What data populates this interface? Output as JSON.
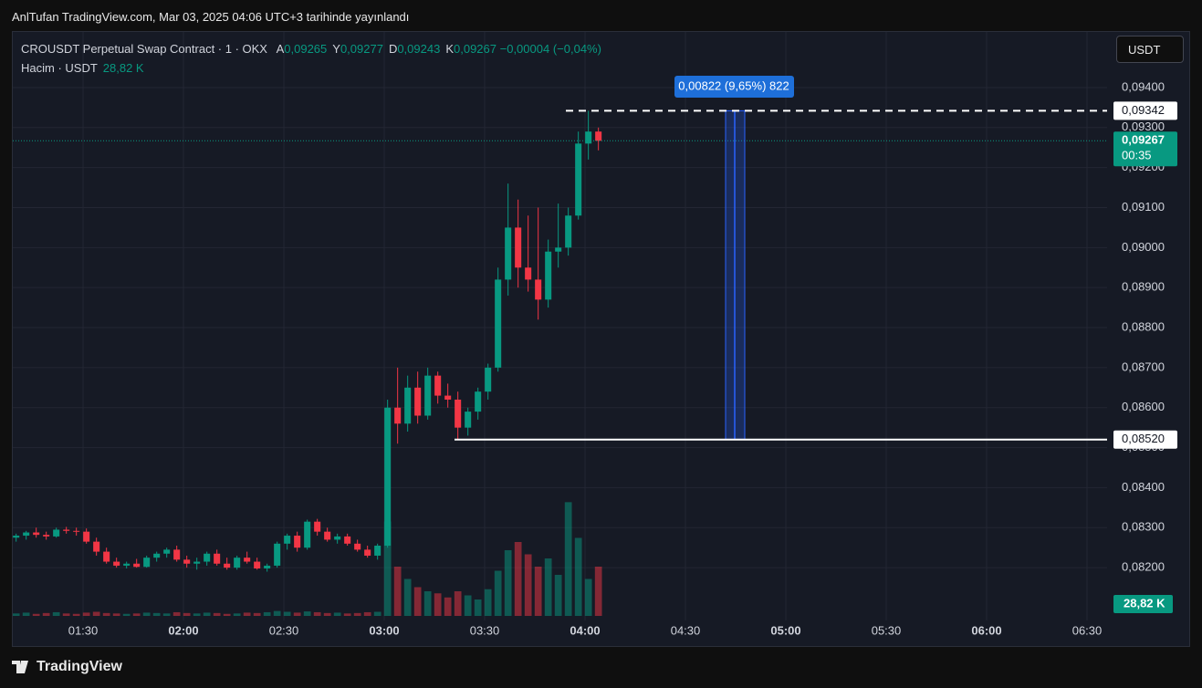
{
  "header": {
    "published": "AnlTufan TradingView.com, Mar 03, 2025 04:06 UTC+3 tarihinde yayınlandı",
    "currency": "USDT"
  },
  "footer": {
    "brand": "TradingView"
  },
  "chart_data": {
    "type": "candlestick",
    "legend": {
      "title": "CROUSDT Perpetual Swap Contract · 1 · OKX",
      "items": [
        {
          "key": "A",
          "value": "0,09265"
        },
        {
          "key": "Y",
          "value": "0,09277"
        },
        {
          "key": "D",
          "value": "0,09243"
        },
        {
          "key": "K",
          "value": "0,09267"
        }
      ],
      "change": "−0,00004 (−0,04%)"
    },
    "volume_title": "Hacim · USDT",
    "volume_last": {
      "value": 28.82,
      "label": "28,82 K"
    },
    "up_color": "#089981",
    "down_color": "#f23645",
    "grid": true,
    "x": [
      "01:10",
      "01:13",
      "01:16",
      "01:19",
      "01:22",
      "01:25",
      "01:28",
      "01:31",
      "01:34",
      "01:37",
      "01:40",
      "01:43",
      "01:46",
      "01:49",
      "01:52",
      "01:55",
      "01:58",
      "02:01",
      "02:04",
      "02:07",
      "02:10",
      "02:13",
      "02:16",
      "02:19",
      "02:22",
      "02:25",
      "02:28",
      "02:31",
      "02:34",
      "02:37",
      "02:40",
      "02:43",
      "02:46",
      "02:49",
      "02:52",
      "02:55",
      "02:58",
      "03:01",
      "03:04",
      "03:07",
      "03:10",
      "03:13",
      "03:16",
      "03:19",
      "03:22",
      "03:25",
      "03:28",
      "03:31",
      "03:34",
      "03:37",
      "03:40",
      "03:43",
      "03:46",
      "03:49",
      "03:52",
      "03:55",
      "03:58",
      "04:01",
      "04:04"
    ],
    "open": [
      0.08275,
      0.0828,
      0.08288,
      0.08282,
      0.08278,
      0.08295,
      0.08292,
      0.0829,
      0.08265,
      0.0824,
      0.08215,
      0.08205,
      0.0821,
      0.08202,
      0.08225,
      0.08235,
      0.08245,
      0.0822,
      0.0821,
      0.08215,
      0.08235,
      0.0821,
      0.082,
      0.08225,
      0.08215,
      0.08198,
      0.08205,
      0.0826,
      0.0828,
      0.0825,
      0.08315,
      0.0829,
      0.0827,
      0.08278,
      0.0826,
      0.08245,
      0.0823,
      0.08255,
      0.086,
      0.0856,
      0.0865,
      0.0858,
      0.0868,
      0.0863,
      0.0862,
      0.0855,
      0.0859,
      0.0864,
      0.087,
      0.0892,
      0.0905,
      0.0895,
      0.0892,
      0.0887,
      0.0899,
      0.09,
      0.0908,
      0.0926,
      0.0929
    ],
    "high": [
      0.08285,
      0.08292,
      0.083,
      0.0829,
      0.083,
      0.08302,
      0.083,
      0.08298,
      0.08275,
      0.0825,
      0.08225,
      0.08215,
      0.08222,
      0.0823,
      0.0824,
      0.0825,
      0.08255,
      0.0823,
      0.08225,
      0.0824,
      0.08245,
      0.08225,
      0.0823,
      0.0824,
      0.08225,
      0.0821,
      0.08265,
      0.08285,
      0.0829,
      0.0832,
      0.08322,
      0.083,
      0.08285,
      0.08285,
      0.0827,
      0.08255,
      0.0826,
      0.0862,
      0.087,
      0.0868,
      0.0869,
      0.087,
      0.0869,
      0.0866,
      0.0864,
      0.086,
      0.0865,
      0.0871,
      0.0895,
      0.0916,
      0.0912,
      0.0908,
      0.091,
      0.0902,
      0.0911,
      0.091,
      0.0929,
      0.09342,
      0.093
    ],
    "low": [
      0.08265,
      0.0827,
      0.08275,
      0.0827,
      0.08275,
      0.08285,
      0.0828,
      0.0826,
      0.0823,
      0.0821,
      0.082,
      0.08198,
      0.082,
      0.082,
      0.08215,
      0.08225,
      0.08215,
      0.082,
      0.08195,
      0.08205,
      0.08205,
      0.08195,
      0.08195,
      0.0821,
      0.08195,
      0.0819,
      0.082,
      0.08245,
      0.0824,
      0.08245,
      0.0828,
      0.08265,
      0.0826,
      0.08255,
      0.0824,
      0.08225,
      0.0822,
      0.0825,
      0.0851,
      0.0854,
      0.0856,
      0.0857,
      0.0861,
      0.086,
      0.0852,
      0.0853,
      0.0857,
      0.0862,
      0.0869,
      0.0888,
      0.089,
      0.0889,
      0.0882,
      0.0885,
      0.0895,
      0.0898,
      0.0907,
      0.0922,
      0.09243
    ],
    "close": [
      0.0828,
      0.08288,
      0.08282,
      0.08278,
      0.08295,
      0.08292,
      0.0829,
      0.08265,
      0.0824,
      0.08215,
      0.08205,
      0.0821,
      0.08202,
      0.08225,
      0.08235,
      0.08245,
      0.0822,
      0.0821,
      0.08215,
      0.08235,
      0.0821,
      0.082,
      0.08225,
      0.08215,
      0.08198,
      0.08205,
      0.0826,
      0.0828,
      0.0825,
      0.08315,
      0.0829,
      0.0827,
      0.08278,
      0.0826,
      0.08245,
      0.0823,
      0.08255,
      0.086,
      0.0856,
      0.0865,
      0.0858,
      0.0868,
      0.0863,
      0.0862,
      0.0855,
      0.0859,
      0.0864,
      0.087,
      0.0892,
      0.0905,
      0.0895,
      0.0892,
      0.0887,
      0.0899,
      0.09,
      0.0908,
      0.0926,
      0.0929,
      0.09267
    ],
    "volume": [
      6,
      8,
      5,
      7,
      9,
      6,
      5,
      8,
      10,
      7,
      6,
      5,
      6,
      8,
      7,
      6,
      9,
      7,
      6,
      8,
      7,
      5,
      6,
      8,
      7,
      9,
      12,
      10,
      8,
      11,
      9,
      7,
      8,
      6,
      7,
      9,
      10,
      230,
      120,
      90,
      70,
      60,
      55,
      45,
      60,
      50,
      40,
      65,
      110,
      160,
      180,
      150,
      120,
      140,
      100,
      277,
      190,
      90,
      120
    ],
    "volume_ylim": [
      0,
      400
    ],
    "xlim": [
      "01:09",
      "06:36"
    ],
    "xticks": [
      "01:30",
      "02:00",
      "02:30",
      "03:00",
      "03:30",
      "04:00",
      "04:30",
      "05:00",
      "05:30",
      "06:00",
      "06:30"
    ],
    "ylim": [
      0.08068,
      0.09539
    ],
    "yticks": [
      {
        "value": 0.082,
        "label": "0,08200"
      },
      {
        "value": 0.083,
        "label": "0,08300"
      },
      {
        "value": 0.084,
        "label": "0,08400"
      },
      {
        "value": 0.085,
        "label": "0,08500"
      },
      {
        "value": 0.086,
        "label": "0,08600"
      },
      {
        "value": 0.087,
        "label": "0,08700"
      },
      {
        "value": 0.088,
        "label": "0,08800"
      },
      {
        "value": 0.089,
        "label": "0,08900"
      },
      {
        "value": 0.09,
        "label": "0,09000"
      },
      {
        "value": 0.091,
        "label": "0,09100"
      },
      {
        "value": 0.092,
        "label": "0,09200"
      },
      {
        "value": 0.093,
        "label": "0,09300"
      },
      {
        "value": 0.094,
        "label": "0,09400"
      }
    ],
    "levels": [
      {
        "value": 0.0852,
        "label": "0,08520",
        "style": "solid"
      },
      {
        "value": 0.09342,
        "label": "0,09342",
        "style": "dashed"
      }
    ],
    "measure": {
      "label": "0,00822 (9,65%) 822"
    },
    "last_price": {
      "value": 0.09267,
      "label": "0,09267"
    },
    "countdown": "00:35"
  }
}
